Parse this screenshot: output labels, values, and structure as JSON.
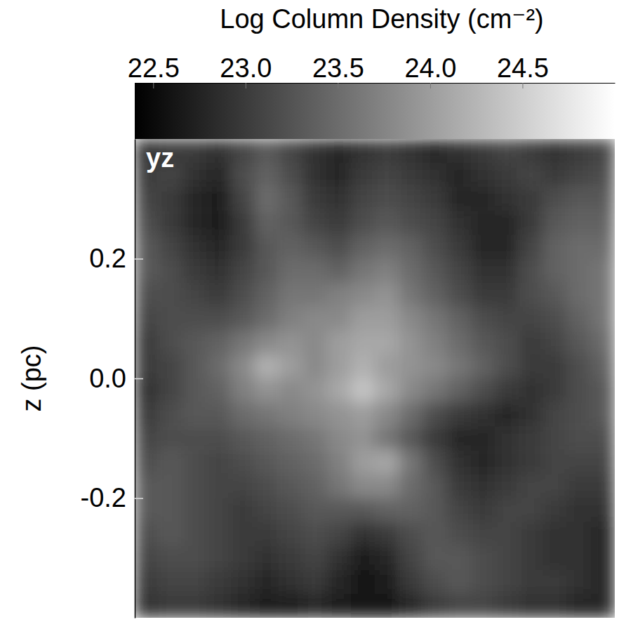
{
  "chart_data": {
    "type": "heatmap",
    "title": "Log Column Density (cm⁻²)",
    "panel_label": "yz",
    "y_label": "z (pc)",
    "ylim": [
      -0.4,
      0.4
    ],
    "yticks": [
      -0.2,
      {
        "value": 0,
        "label": "0.0"
      },
      0.2
    ],
    "tick_labels": "y",
    "colorbar": {
      "range": [
        22.4,
        25.0
      ],
      "ticks": [
        22.5,
        {
          "value": 23,
          "label": "23.0"
        },
        23.5,
        {
          "value": 24,
          "label": "24.0"
        },
        24.5
      ]
    },
    "cells": [
      [
        22.9,
        23.0,
        23.0,
        22.9,
        23.1,
        23.3,
        23.1,
        22.9,
        22.8,
        22.9,
        23.0,
        22.9,
        22.8,
        22.9,
        23.0,
        23.1,
        23.0,
        22.9,
        23.0,
        23.1
      ],
      [
        23.0,
        23.1,
        22.9,
        22.8,
        23.2,
        23.4,
        23.2,
        22.9,
        22.8,
        23.0,
        23.1,
        23.0,
        22.9,
        22.8,
        22.9,
        23.0,
        23.1,
        23.0,
        23.1,
        23.2
      ],
      [
        23.1,
        23.0,
        22.8,
        22.7,
        23.1,
        23.5,
        23.3,
        23.0,
        22.9,
        23.1,
        23.2,
        23.1,
        23.0,
        22.8,
        22.8,
        22.9,
        23.0,
        23.2,
        23.3,
        23.3
      ],
      [
        23.2,
        23.0,
        22.8,
        22.7,
        23.0,
        23.4,
        23.3,
        23.1,
        23.0,
        23.2,
        23.3,
        23.2,
        23.1,
        22.9,
        22.8,
        22.8,
        23.0,
        23.3,
        23.4,
        23.4
      ],
      [
        23.3,
        23.1,
        22.9,
        22.8,
        23.0,
        23.3,
        23.4,
        23.3,
        23.2,
        23.4,
        23.5,
        23.4,
        23.2,
        23.0,
        22.8,
        22.8,
        23.1,
        23.4,
        23.5,
        23.5
      ],
      [
        23.3,
        23.2,
        23.0,
        22.9,
        23.1,
        23.3,
        23.5,
        23.5,
        23.4,
        23.6,
        23.7,
        23.5,
        23.3,
        23.1,
        22.9,
        22.9,
        23.2,
        23.4,
        23.5,
        23.6
      ],
      [
        23.2,
        23.2,
        23.1,
        23.0,
        23.2,
        23.4,
        23.6,
        23.6,
        23.7,
        23.8,
        23.9,
        23.6,
        23.4,
        23.2,
        23.0,
        23.0,
        23.2,
        23.3,
        23.5,
        23.6
      ],
      [
        23.1,
        23.2,
        23.2,
        23.2,
        23.3,
        23.5,
        23.7,
        23.8,
        23.8,
        24.0,
        24.0,
        23.8,
        23.6,
        23.4,
        23.2,
        23.1,
        23.1,
        23.2,
        23.4,
        23.6
      ],
      [
        23.0,
        23.2,
        23.3,
        23.4,
        23.6,
        23.8,
        23.9,
        23.8,
        24.0,
        24.1,
        24.1,
        23.9,
        23.7,
        23.5,
        23.3,
        23.2,
        23.0,
        23.1,
        23.3,
        23.5
      ],
      [
        23.0,
        23.1,
        23.3,
        23.5,
        23.8,
        24.2,
        24.0,
        23.8,
        24.0,
        24.2,
        24.0,
        23.9,
        23.8,
        23.6,
        23.4,
        23.2,
        23.0,
        23.0,
        23.2,
        23.4
      ],
      [
        22.9,
        23.1,
        23.3,
        23.4,
        23.7,
        23.9,
        23.8,
        23.9,
        24.1,
        24.4,
        24.1,
        23.8,
        23.6,
        23.4,
        23.2,
        23.0,
        22.9,
        23.0,
        23.2,
        23.3
      ],
      [
        23.0,
        23.2,
        23.3,
        23.3,
        23.5,
        23.6,
        23.7,
        23.8,
        23.9,
        24.0,
        23.8,
        23.5,
        23.2,
        23.0,
        22.9,
        22.8,
        22.9,
        23.1,
        23.2,
        23.3
      ],
      [
        23.1,
        23.2,
        23.2,
        23.2,
        23.3,
        23.4,
        23.5,
        23.6,
        23.8,
        23.9,
        23.6,
        23.3,
        23.0,
        22.8,
        22.8,
        22.9,
        23.0,
        23.1,
        23.2,
        23.2
      ],
      [
        23.2,
        23.3,
        23.2,
        23.1,
        23.2,
        23.3,
        23.4,
        23.5,
        23.7,
        24.0,
        24.1,
        23.6,
        23.2,
        22.9,
        22.8,
        22.9,
        23.0,
        23.1,
        23.1,
        23.1
      ],
      [
        23.3,
        23.3,
        23.2,
        23.1,
        23.1,
        23.2,
        23.3,
        23.4,
        23.6,
        23.8,
        23.8,
        23.5,
        23.3,
        23.0,
        22.9,
        23.0,
        23.1,
        23.1,
        23.0,
        23.0
      ],
      [
        23.3,
        23.3,
        23.2,
        23.1,
        23.0,
        23.1,
        23.2,
        23.3,
        23.3,
        23.3,
        23.4,
        23.4,
        23.3,
        23.1,
        23.0,
        23.1,
        23.1,
        23.0,
        22.9,
        22.9
      ],
      [
        23.2,
        23.3,
        23.2,
        23.1,
        23.0,
        23.0,
        23.1,
        23.2,
        23.1,
        22.9,
        23.0,
        23.2,
        23.3,
        23.2,
        23.1,
        23.1,
        23.0,
        22.9,
        22.9,
        22.8
      ],
      [
        23.1,
        23.2,
        23.2,
        23.1,
        23.0,
        22.9,
        23.0,
        23.1,
        22.9,
        22.7,
        22.8,
        23.1,
        23.3,
        23.3,
        23.2,
        23.1,
        23.0,
        22.9,
        22.9,
        22.8
      ],
      [
        23.0,
        23.1,
        23.1,
        23.0,
        22.9,
        22.8,
        22.9,
        23.0,
        22.8,
        22.6,
        22.7,
        23.0,
        23.2,
        23.3,
        23.2,
        23.1,
        23.0,
        23.0,
        22.9,
        22.8
      ],
      [
        22.9,
        23.0,
        23.0,
        22.9,
        22.8,
        22.7,
        22.7,
        22.8,
        22.7,
        22.6,
        22.6,
        22.8,
        23.0,
        23.1,
        23.1,
        23.0,
        22.9,
        22.9,
        22.8,
        22.8
      ]
    ]
  }
}
